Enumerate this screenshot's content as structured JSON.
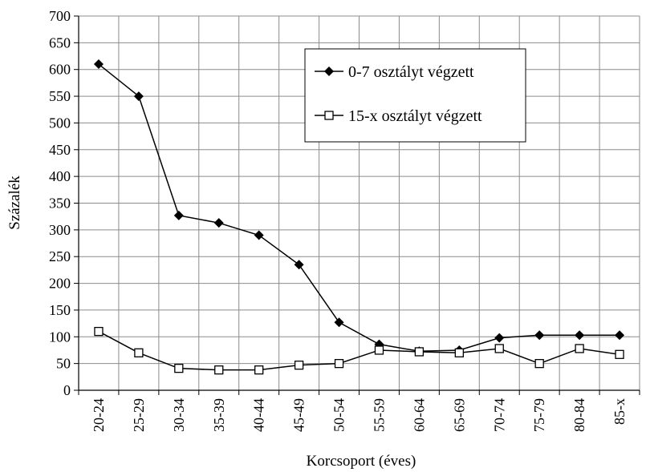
{
  "chart_data": {
    "type": "line",
    "title": "",
    "xlabel": "Korcsoport (éves)",
    "ylabel": "Százalék",
    "ylim": [
      0,
      700
    ],
    "yticks": [
      0,
      50,
      100,
      150,
      200,
      250,
      300,
      350,
      400,
      450,
      500,
      550,
      600,
      650,
      700
    ],
    "grid": true,
    "legend_position": "top-right",
    "categories": [
      "20-24",
      "25-29",
      "30-34",
      "35-39",
      "40-44",
      "45-49",
      "50-54",
      "55-59",
      "60-64",
      "65-69",
      "70-74",
      "75-79",
      "80-84",
      "85-x"
    ],
    "series": [
      {
        "name": "0-7 osztályt végzett",
        "marker": "filled-diamond",
        "color": "#000000",
        "values": [
          610,
          550,
          327,
          313,
          290,
          235,
          127,
          86,
          73,
          75,
          98,
          103,
          103,
          103
        ]
      },
      {
        "name": "15-x osztályt végzett",
        "marker": "open-square",
        "color": "#000000",
        "values": [
          110,
          70,
          41,
          38,
          38,
          47,
          50,
          75,
          72,
          70,
          78,
          50,
          78,
          67
        ]
      }
    ]
  }
}
